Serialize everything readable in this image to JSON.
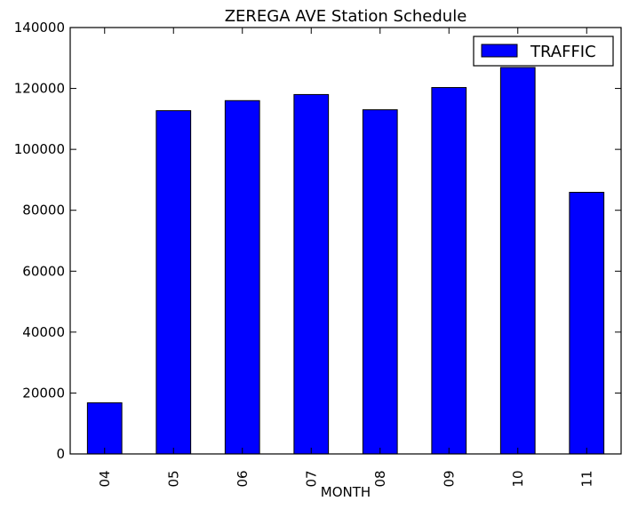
{
  "chart_data": {
    "type": "bar",
    "title": "ZEREGA AVE Station Schedule",
    "xlabel": "MONTH",
    "ylabel": "",
    "categories": [
      "04",
      "05",
      "06",
      "07",
      "08",
      "09",
      "10",
      "11"
    ],
    "series": [
      {
        "name": "TRAFFIC",
        "values": [
          16800,
          112700,
          116000,
          118000,
          113000,
          120300,
          126900,
          85900
        ],
        "color": "#0000ff"
      }
    ],
    "ylim": [
      0,
      140000
    ],
    "yticks": [
      0,
      20000,
      40000,
      60000,
      80000,
      100000,
      120000,
      140000
    ],
    "ytick_labels": [
      "0",
      "20000",
      "40000",
      "60000",
      "80000",
      "100000",
      "120000",
      "140000"
    ],
    "grid": false,
    "legend_position": "top-right"
  }
}
